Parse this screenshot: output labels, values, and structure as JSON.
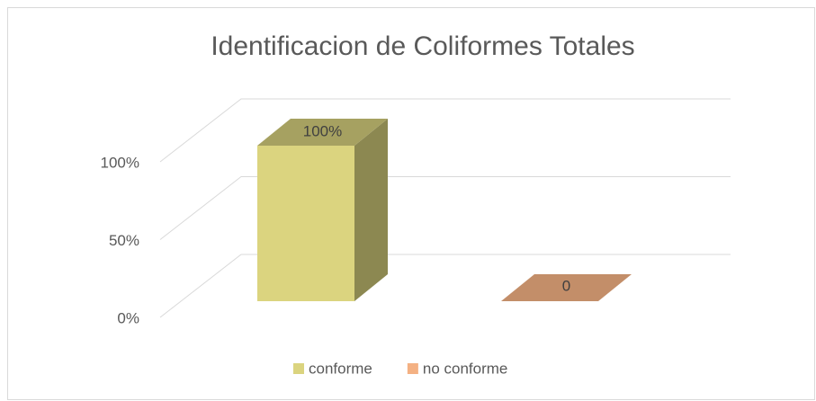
{
  "chart_data": {
    "type": "bar3d",
    "title": "Identificacion de Coliformes Totales",
    "categories": [
      null
    ],
    "series": [
      {
        "name": "conforme",
        "color": "#dbd47f",
        "values": [
          100
        ],
        "value_labels": [
          "100%"
        ]
      },
      {
        "name": "no conforme",
        "color": "#f4b183",
        "values": [
          0
        ],
        "value_labels": [
          "0"
        ]
      }
    ],
    "ylim": [
      0,
      100
    ],
    "yticks": [
      {
        "value": 0,
        "label": "0%"
      },
      {
        "value": 50,
        "label": "50%"
      },
      {
        "value": 100,
        "label": "100%"
      }
    ],
    "grid": true,
    "legend": "bottom"
  }
}
